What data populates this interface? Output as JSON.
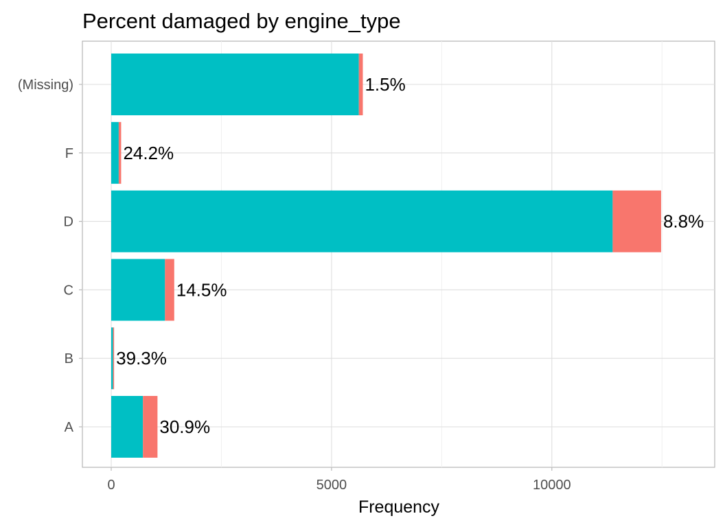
{
  "chart_data": {
    "type": "bar",
    "orientation": "horizontal",
    "stacked": true,
    "title": "Percent damaged by engine_type",
    "xlabel": "Frequency",
    "ylabel": "",
    "xlim": [
      0,
      13400
    ],
    "x_ticks": [
      0,
      5000,
      10000
    ],
    "x_tick_labels": [
      "0",
      "5000",
      "10000"
    ],
    "grid": true,
    "categories": [
      "A",
      "B",
      "C",
      "D",
      "F",
      "(Missing)"
    ],
    "series": [
      {
        "values": [
          720,
          40,
          1220,
          11380,
          170,
          5620
        ],
        "color": "#00BFC4"
      },
      {
        "values": [
          330,
          25,
          210,
          1100,
          55,
          90
        ],
        "color": "#F8766D"
      }
    ],
    "labels": [
      "30.9%",
      "39.3%",
      "14.5%",
      "8.8%",
      "24.2%",
      "1.5%"
    ]
  }
}
